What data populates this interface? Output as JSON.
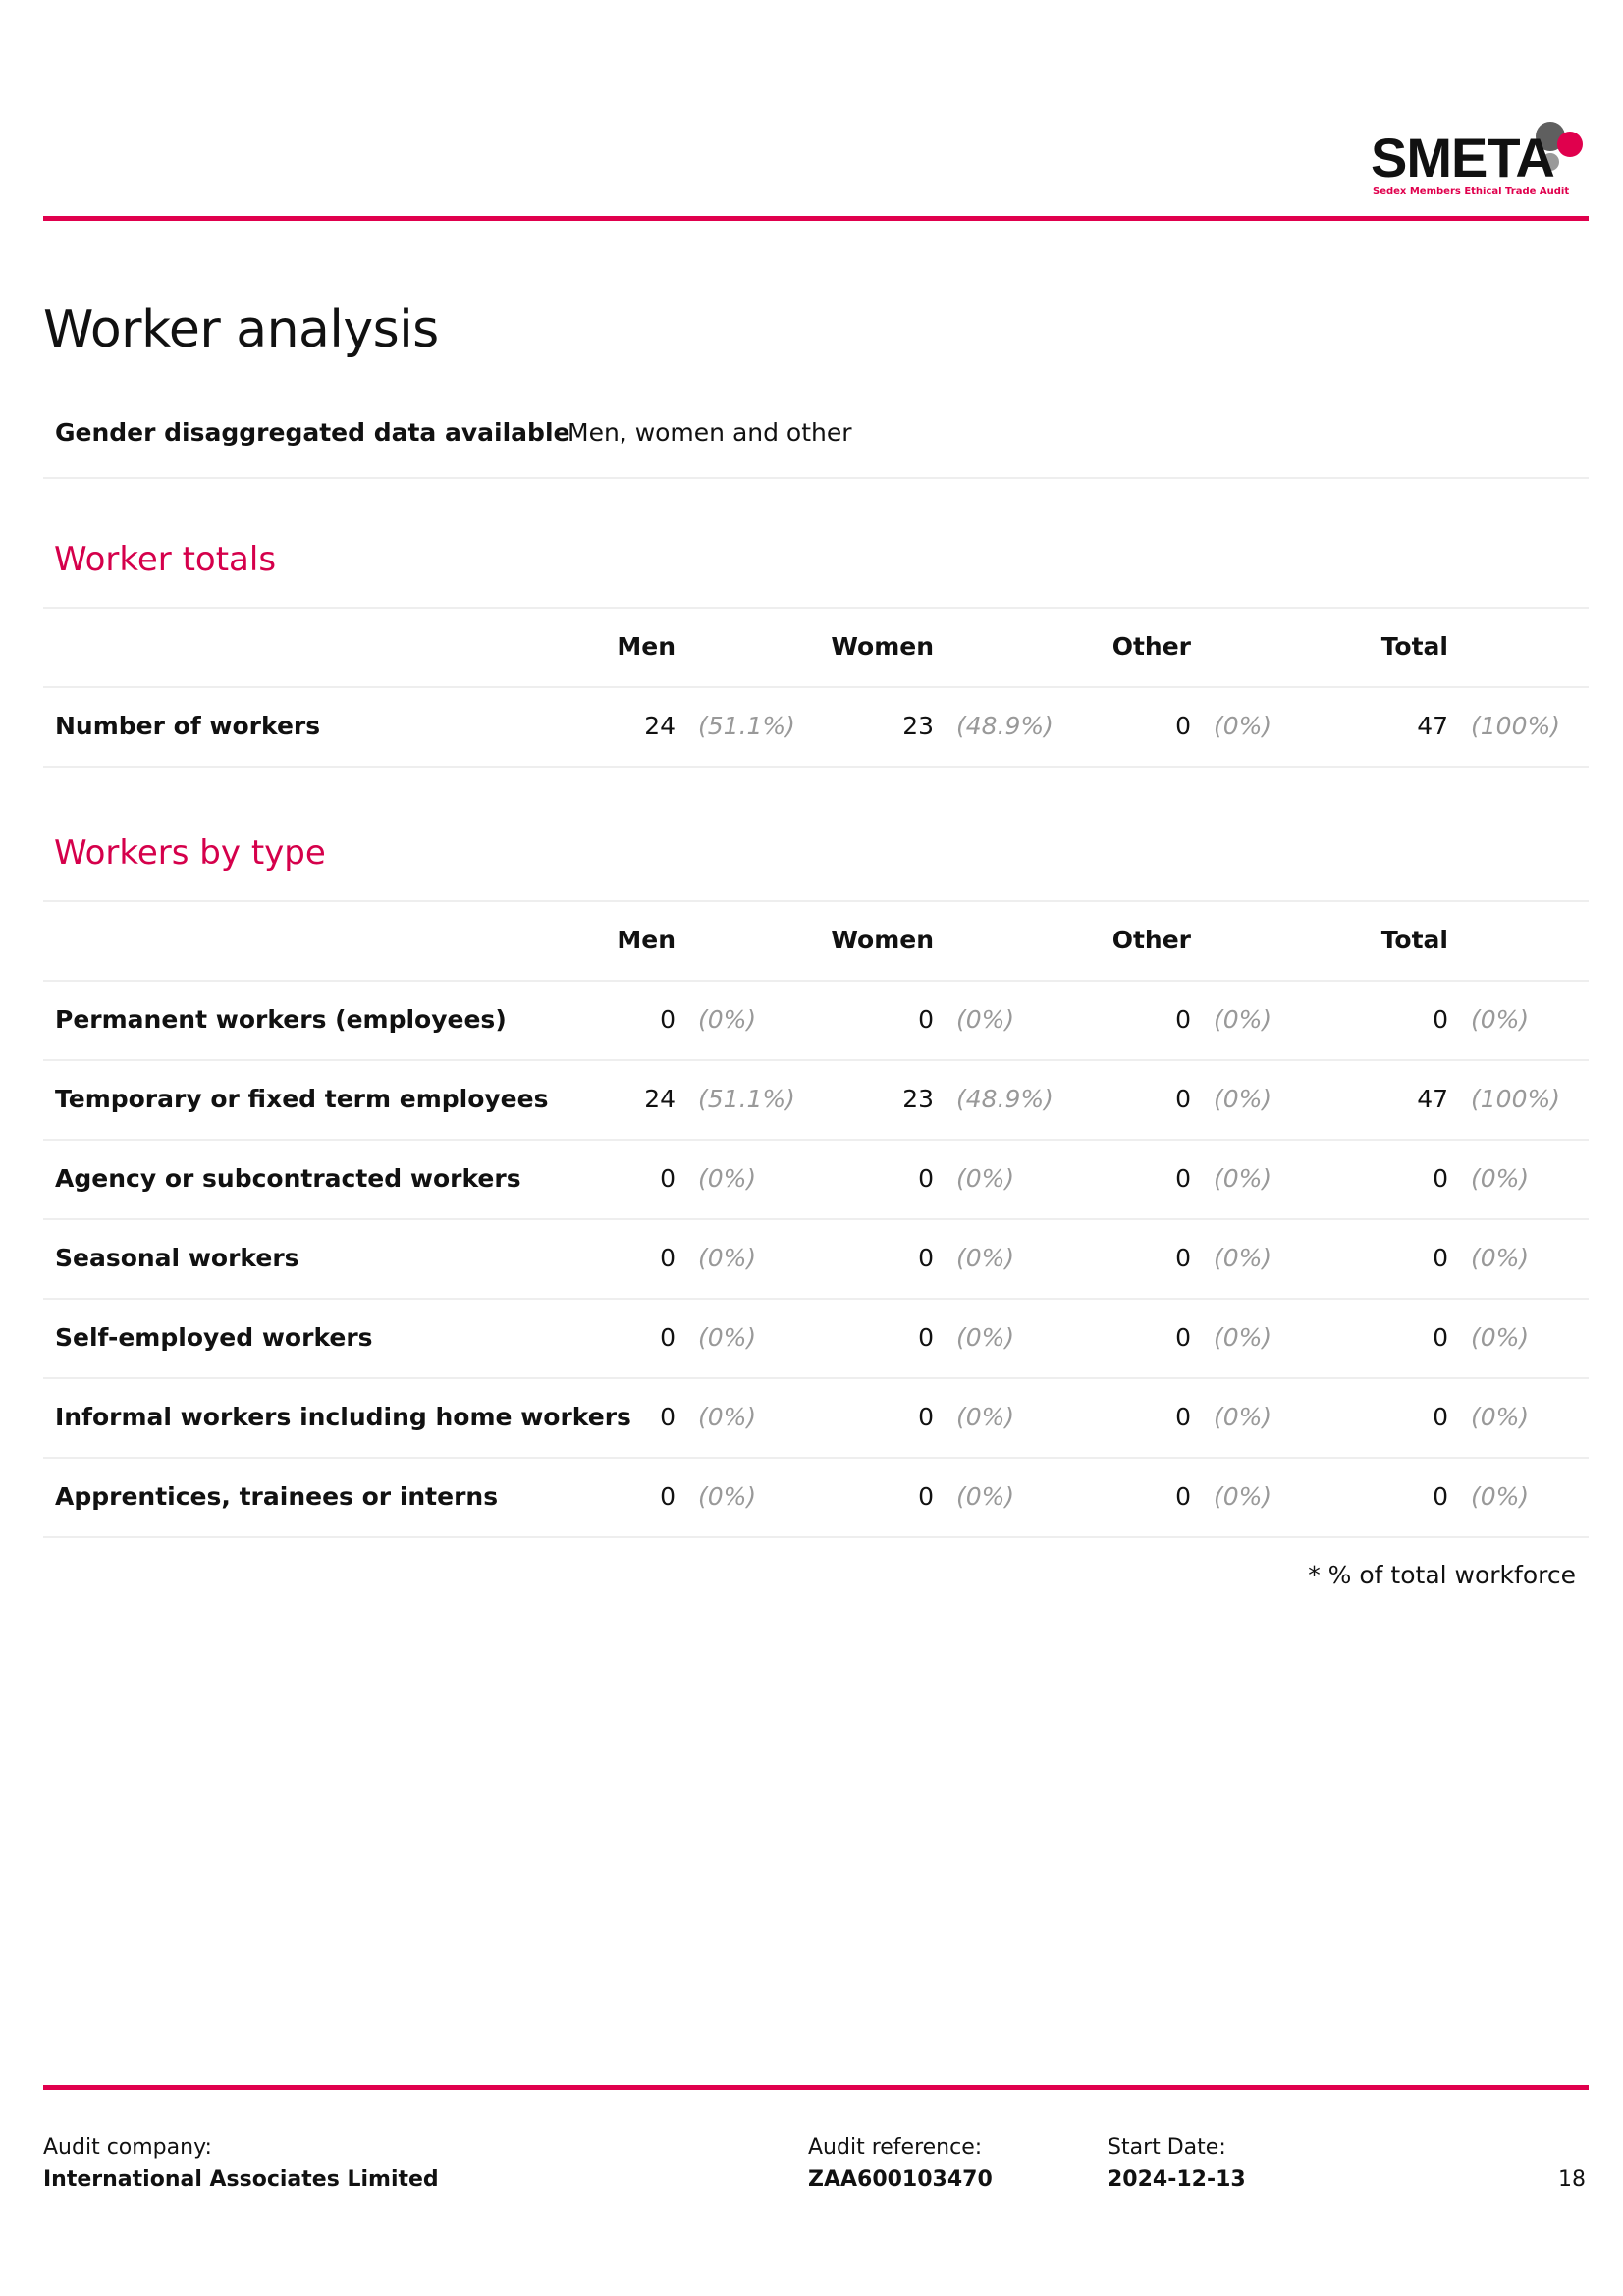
{
  "logo": {
    "text": "SMETA",
    "subtitle": "Sedex Members Ethical Trade Audit",
    "colors": {
      "accent": "#e0004d",
      "grey": "#666666"
    }
  },
  "page_title": "Worker analysis",
  "gender_data": {
    "label": "Gender disaggregated data available",
    "value": "Men, women and other"
  },
  "columns": [
    "Men",
    "Women",
    "Other",
    "Total"
  ],
  "worker_totals": {
    "title": "Worker totals",
    "rows": [
      {
        "label": "Number of workers",
        "cells": [
          {
            "n": "24",
            "p": "(51.1%)"
          },
          {
            "n": "23",
            "p": "(48.9%)"
          },
          {
            "n": "0",
            "p": "(0%)"
          },
          {
            "n": "47",
            "p": "(100%)"
          }
        ]
      }
    ]
  },
  "workers_by_type": {
    "title": "Workers by type",
    "rows": [
      {
        "label": "Permanent workers (employees)",
        "cells": [
          {
            "n": "0",
            "p": "(0%)"
          },
          {
            "n": "0",
            "p": "(0%)"
          },
          {
            "n": "0",
            "p": "(0%)"
          },
          {
            "n": "0",
            "p": "(0%)"
          }
        ]
      },
      {
        "label": "Temporary or fixed term employees",
        "cells": [
          {
            "n": "24",
            "p": "(51.1%)"
          },
          {
            "n": "23",
            "p": "(48.9%)"
          },
          {
            "n": "0",
            "p": "(0%)"
          },
          {
            "n": "47",
            "p": "(100%)"
          }
        ]
      },
      {
        "label": "Agency or subcontracted workers",
        "cells": [
          {
            "n": "0",
            "p": "(0%)"
          },
          {
            "n": "0",
            "p": "(0%)"
          },
          {
            "n": "0",
            "p": "(0%)"
          },
          {
            "n": "0",
            "p": "(0%)"
          }
        ]
      },
      {
        "label": "Seasonal workers",
        "cells": [
          {
            "n": "0",
            "p": "(0%)"
          },
          {
            "n": "0",
            "p": "(0%)"
          },
          {
            "n": "0",
            "p": "(0%)"
          },
          {
            "n": "0",
            "p": "(0%)"
          }
        ]
      },
      {
        "label": "Self-employed workers",
        "cells": [
          {
            "n": "0",
            "p": "(0%)"
          },
          {
            "n": "0",
            "p": "(0%)"
          },
          {
            "n": "0",
            "p": "(0%)"
          },
          {
            "n": "0",
            "p": "(0%)"
          }
        ]
      },
      {
        "label": "Informal workers including home workers",
        "cells": [
          {
            "n": "0",
            "p": "(0%)"
          },
          {
            "n": "0",
            "p": "(0%)"
          },
          {
            "n": "0",
            "p": "(0%)"
          },
          {
            "n": "0",
            "p": "(0%)"
          }
        ]
      },
      {
        "label": "Apprentices, trainees or interns",
        "cells": [
          {
            "n": "0",
            "p": "(0%)"
          },
          {
            "n": "0",
            "p": "(0%)"
          },
          {
            "n": "0",
            "p": "(0%)"
          },
          {
            "n": "0",
            "p": "(0%)"
          }
        ]
      }
    ]
  },
  "note": "* % of total workforce",
  "footer": {
    "audit_company_label": "Audit company:",
    "audit_company": "International Associates Limited",
    "audit_reference_label": "Audit reference:",
    "audit_reference": "ZAA600103470",
    "start_date_label": "Start Date:",
    "start_date": "2024-12-13",
    "page_number": "18"
  }
}
